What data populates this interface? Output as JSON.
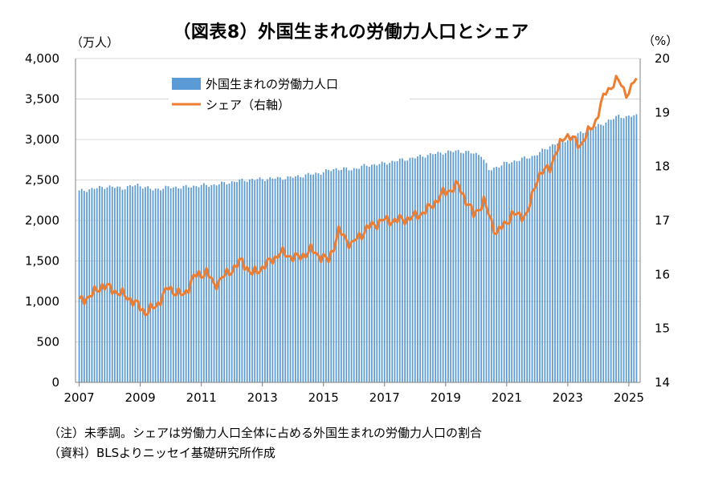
{
  "title": "（図表8）外国生まれの労働力人口とシェア",
  "left_unit": "（万人）",
  "right_unit": "（%）",
  "notes": {
    "note1": "（注）未季調。シェアは労働力人口全体に占める外国生まれの労働力人口の割合",
    "note2": "（資料）BLSよりニッセイ基礎研究所作成"
  },
  "colors": {
    "bars": "#5b9bd5",
    "line": "#ed7d31",
    "axis": "#808080",
    "grid": "#d9d9d9"
  },
  "chart_data": {
    "type": "bar+line",
    "x_tick_labels": [
      "2007",
      "2009",
      "2011",
      "2013",
      "2015",
      "2017",
      "2019",
      "2021",
      "2023",
      "2025"
    ],
    "left_axis": {
      "ylim": [
        0,
        4000
      ],
      "ticks": [
        "0",
        "500",
        "1,000",
        "1,500",
        "2,000",
        "2,500",
        "3,000",
        "3,500",
        "4,000"
      ]
    },
    "right_axis": {
      "ylim": [
        14,
        20
      ],
      "ticks": [
        "14",
        "15",
        "16",
        "17",
        "18",
        "19",
        "20"
      ]
    },
    "legend_position": "top-left",
    "frequency": "monthly",
    "start": "2007-01",
    "series": [
      {
        "name": "外国生まれの労働力人口",
        "type": "bar",
        "axis": "left",
        "anchors": [
          [
            "2007-01",
            2360
          ],
          [
            "2007-06",
            2390
          ],
          [
            "2007-12",
            2420
          ],
          [
            "2008-06",
            2400
          ],
          [
            "2008-12",
            2440
          ],
          [
            "2009-06",
            2380
          ],
          [
            "2009-12",
            2410
          ],
          [
            "2010-06",
            2410
          ],
          [
            "2010-12",
            2430
          ],
          [
            "2011-06",
            2440
          ],
          [
            "2011-12",
            2470
          ],
          [
            "2012-06",
            2500
          ],
          [
            "2012-12",
            2510
          ],
          [
            "2013-06",
            2520
          ],
          [
            "2013-12",
            2530
          ],
          [
            "2014-06",
            2560
          ],
          [
            "2014-12",
            2590
          ],
          [
            "2015-06",
            2640
          ],
          [
            "2015-12",
            2630
          ],
          [
            "2016-06",
            2680
          ],
          [
            "2016-12",
            2700
          ],
          [
            "2017-06",
            2740
          ],
          [
            "2017-12",
            2770
          ],
          [
            "2018-06",
            2810
          ],
          [
            "2018-12",
            2840
          ],
          [
            "2019-06",
            2860
          ],
          [
            "2019-12",
            2830
          ],
          [
            "2020-03",
            2810
          ],
          [
            "2020-06",
            2620
          ],
          [
            "2020-12",
            2700
          ],
          [
            "2021-06",
            2750
          ],
          [
            "2021-12",
            2800
          ],
          [
            "2022-06",
            2920
          ],
          [
            "2022-12",
            2990
          ],
          [
            "2023-06",
            3080
          ],
          [
            "2023-12",
            3160
          ],
          [
            "2024-06",
            3240
          ],
          [
            "2024-09",
            3300
          ],
          [
            "2024-12",
            3270
          ],
          [
            "2025-03",
            3300
          ]
        ]
      },
      {
        "name": "シェア（右軸）",
        "type": "line",
        "axis": "right",
        "anchors": [
          [
            "2007-01",
            15.5
          ],
          [
            "2007-06",
            15.62
          ],
          [
            "2007-10",
            15.8
          ],
          [
            "2008-03",
            15.7
          ],
          [
            "2008-09",
            15.55
          ],
          [
            "2009-03",
            15.3
          ],
          [
            "2009-07",
            15.4
          ],
          [
            "2009-12",
            15.75
          ],
          [
            "2010-06",
            15.6
          ],
          [
            "2010-10",
            15.95
          ],
          [
            "2011-03",
            16.05
          ],
          [
            "2011-06",
            15.8
          ],
          [
            "2011-12",
            16.05
          ],
          [
            "2012-05",
            16.25
          ],
          [
            "2012-09",
            16.0
          ],
          [
            "2013-03",
            16.2
          ],
          [
            "2013-08",
            16.4
          ],
          [
            "2014-03",
            16.3
          ],
          [
            "2014-08",
            16.45
          ],
          [
            "2015-03",
            16.25
          ],
          [
            "2015-07",
            16.8
          ],
          [
            "2015-12",
            16.55
          ],
          [
            "2016-06",
            16.85
          ],
          [
            "2016-12",
            17.0
          ],
          [
            "2017-06",
            17.0
          ],
          [
            "2017-12",
            17.05
          ],
          [
            "2018-06",
            17.2
          ],
          [
            "2018-12",
            17.5
          ],
          [
            "2019-06",
            17.65
          ],
          [
            "2019-12",
            17.1
          ],
          [
            "2020-04",
            17.35
          ],
          [
            "2020-09",
            16.75
          ],
          [
            "2021-03",
            17.1
          ],
          [
            "2021-09",
            17.1
          ],
          [
            "2022-01",
            17.8
          ],
          [
            "2022-06",
            18.0
          ],
          [
            "2022-12",
            18.6
          ],
          [
            "2023-06",
            18.4
          ],
          [
            "2023-12",
            18.85
          ],
          [
            "2024-04",
            19.4
          ],
          [
            "2024-09",
            19.6
          ],
          [
            "2025-01",
            19.3
          ],
          [
            "2025-03",
            19.6
          ]
        ]
      }
    ]
  }
}
